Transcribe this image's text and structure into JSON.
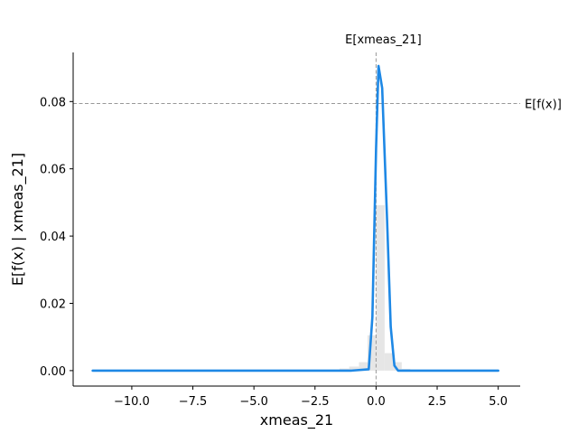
{
  "chart_data": {
    "type": "line",
    "xlabel": "xmeas_21",
    "ylabel": "E[f(x) | xmeas_21]",
    "xlim": [
      -12.4,
      5.9
    ],
    "ylim": [
      -0.0046,
      0.0946
    ],
    "x_ticks": [
      -10.0,
      -7.5,
      -5.0,
      -2.5,
      0.0,
      2.5,
      5.0
    ],
    "x_tick_labels": [
      "−10.0",
      "−7.5",
      "−5.0",
      "−2.5",
      "0.0",
      "2.5",
      "5.0"
    ],
    "y_ticks": [
      0.0,
      0.02,
      0.04,
      0.06,
      0.08
    ],
    "y_tick_labels": [
      "0.00",
      "0.02",
      "0.04",
      "0.06",
      "0.08"
    ],
    "series": [
      {
        "color": "#1e88e5",
        "x": [
          -11.6,
          -9.0,
          -6.0,
          -3.0,
          -1.0,
          -0.3,
          -0.15,
          0.0,
          0.1,
          0.25,
          0.45,
          0.6,
          0.75,
          0.9,
          1.5,
          3.0,
          5.0
        ],
        "y": [
          0.0,
          0.0,
          0.0,
          0.0,
          0.0,
          0.0004,
          0.016,
          0.066,
          0.0906,
          0.084,
          0.045,
          0.013,
          0.0015,
          0.0,
          0.0,
          0.0,
          0.0
        ]
      }
    ],
    "histogram": {
      "color": "#e6e6e6",
      "bins": [
        {
          "x0": -1.9,
          "x1": -1.5,
          "height": 0.0003
        },
        {
          "x0": -1.5,
          "x1": -1.1,
          "height": 0.0006
        },
        {
          "x0": -1.1,
          "x1": -0.7,
          "height": 0.0012
        },
        {
          "x0": -0.7,
          "x1": -0.35,
          "height": 0.0025
        },
        {
          "x0": -0.35,
          "x1": 0.0,
          "height": 0.0105
        },
        {
          "x0": 0.0,
          "x1": 0.35,
          "height": 0.0492
        },
        {
          "x0": 0.35,
          "x1": 0.7,
          "height": 0.0052
        },
        {
          "x0": 0.7,
          "x1": 1.05,
          "height": 0.0025
        },
        {
          "x0": 1.05,
          "x1": 1.4,
          "height": 0.0005
        },
        {
          "x0": 1.4,
          "x1": 1.8,
          "height": 0.0003
        }
      ]
    },
    "reference_lines": {
      "vertical": {
        "x": 0.0,
        "label": "E[xmeas_21]",
        "color": "#999999"
      },
      "horizontal": {
        "y": 0.0794,
        "label": "E[f(x)]",
        "color": "#999999"
      }
    },
    "grid": false,
    "legend": "none"
  }
}
